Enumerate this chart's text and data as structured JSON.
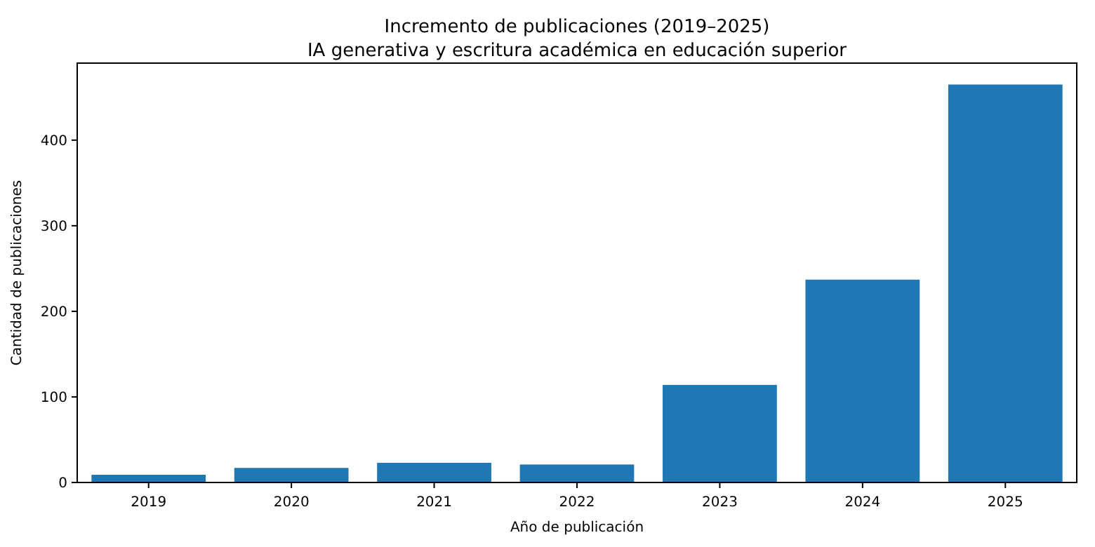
{
  "chart_data": {
    "type": "bar",
    "title": "Incremento de publicaciones (2019–2025)",
    "subtitle": "IA generativa y escritura académica en educación superior",
    "xlabel": "Año de publicación",
    "ylabel": "Cantidad de publicaciones",
    "categories": [
      "2019",
      "2020",
      "2021",
      "2022",
      "2023",
      "2024",
      "2025"
    ],
    "values": [
      9,
      17,
      23,
      21,
      114,
      237,
      465
    ],
    "color": "#1f77b4",
    "ylim": [
      0,
      490
    ],
    "yticks": [
      0,
      100,
      200,
      300,
      400
    ],
    "grid": false
  }
}
